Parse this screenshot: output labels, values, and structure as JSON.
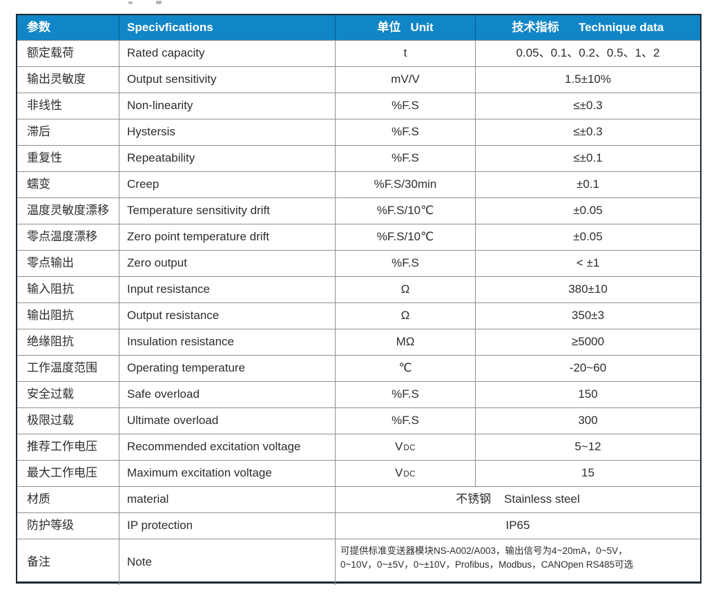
{
  "page": {
    "background_color": "#ffffff",
    "description_colors": {
      "header_bg": "#1186c7",
      "header_divider": "#0a5e91",
      "outer_border": "#1d2832",
      "grid_line": "#8f8f8f",
      "body_text": "#2d2d2d"
    }
  },
  "table": {
    "header": {
      "columns": [
        {
          "label": "参数"
        },
        {
          "label": "Specivfications"
        },
        {
          "label": "单位   Unit"
        },
        {
          "label": "技术指标      Technique data"
        }
      ]
    },
    "rows": [
      {
        "param": "额定载荷",
        "spec": "Rated capacity",
        "unit": "t",
        "value": "0.05、0.1、0.2、0.5、1、2"
      },
      {
        "param": "输出灵敏度",
        "spec": "Output sensitivity",
        "unit": "mV/V",
        "value": "1.5±10%"
      },
      {
        "param": "非线性",
        "spec": "Non-linearity",
        "unit": "%F.S",
        "value": "≤±0.3"
      },
      {
        "param": "滞后",
        "spec": "Hystersis",
        "unit": "%F.S",
        "value": "≤±0.3"
      },
      {
        "param": "重复性",
        "spec": "Repeatability",
        "unit": "%F.S",
        "value": "≤±0.1"
      },
      {
        "param": "蠕变",
        "spec": "Creep",
        "unit": "%F.S/30min",
        "value": "±0.1"
      },
      {
        "param": "温度灵敏度漂移",
        "spec": "Temperature sensitivity drift",
        "unit": "%F.S/10℃",
        "value": "±0.05"
      },
      {
        "param": "零点温度漂移",
        "spec": "Zero point temperature drift",
        "unit": "%F.S/10℃",
        "value": "±0.05"
      },
      {
        "param": "零点输出",
        "spec": "Zero output",
        "unit": "%F.S",
        "value": "< ±1"
      },
      {
        "param": "输入阻抗",
        "spec": "Input resistance",
        "unit": "Ω",
        "value": "380±10"
      },
      {
        "param": "输出阻抗",
        "spec": "Output resistance",
        "unit": "Ω",
        "value": "350±3"
      },
      {
        "param": "绝缘阻抗",
        "spec": "Insulation resistance",
        "unit": "MΩ",
        "value": "≥5000"
      },
      {
        "param": "工作温度范围",
        "spec": "Operating temperature",
        "unit": "℃",
        "value": "-20~60"
      },
      {
        "param": "安全过载",
        "spec": "Safe overload",
        "unit": "%F.S",
        "value": "150"
      },
      {
        "param": "极限过载",
        "spec": "Ultimate overload",
        "unit": "%F.S",
        "value": "300"
      },
      {
        "param": "推荐工作电压",
        "spec": "Recommended excitation voltage",
        "unit": "V",
        "unit_sub": "DC",
        "value": "5~12"
      },
      {
        "param": "最大工作电压",
        "spec": "Maximum excitation voltage",
        "unit": "V",
        "unit_sub": "DC",
        "value": "15"
      },
      {
        "param": "材质",
        "spec": "material",
        "merged": "不锈钢    Stainless steel"
      },
      {
        "param": "防护等级",
        "spec": "IP protection",
        "merged": "IP65"
      },
      {
        "param": "备注",
        "spec": "Note",
        "merged": "可提供标准变送器模块NS-A002/A003，输出信号为4~20mA，0~5V，\n0~10V，0~±5V，0~±10V，Profibus，Modbus，CANOpen RS485可选",
        "merged_style": "note"
      }
    ]
  }
}
